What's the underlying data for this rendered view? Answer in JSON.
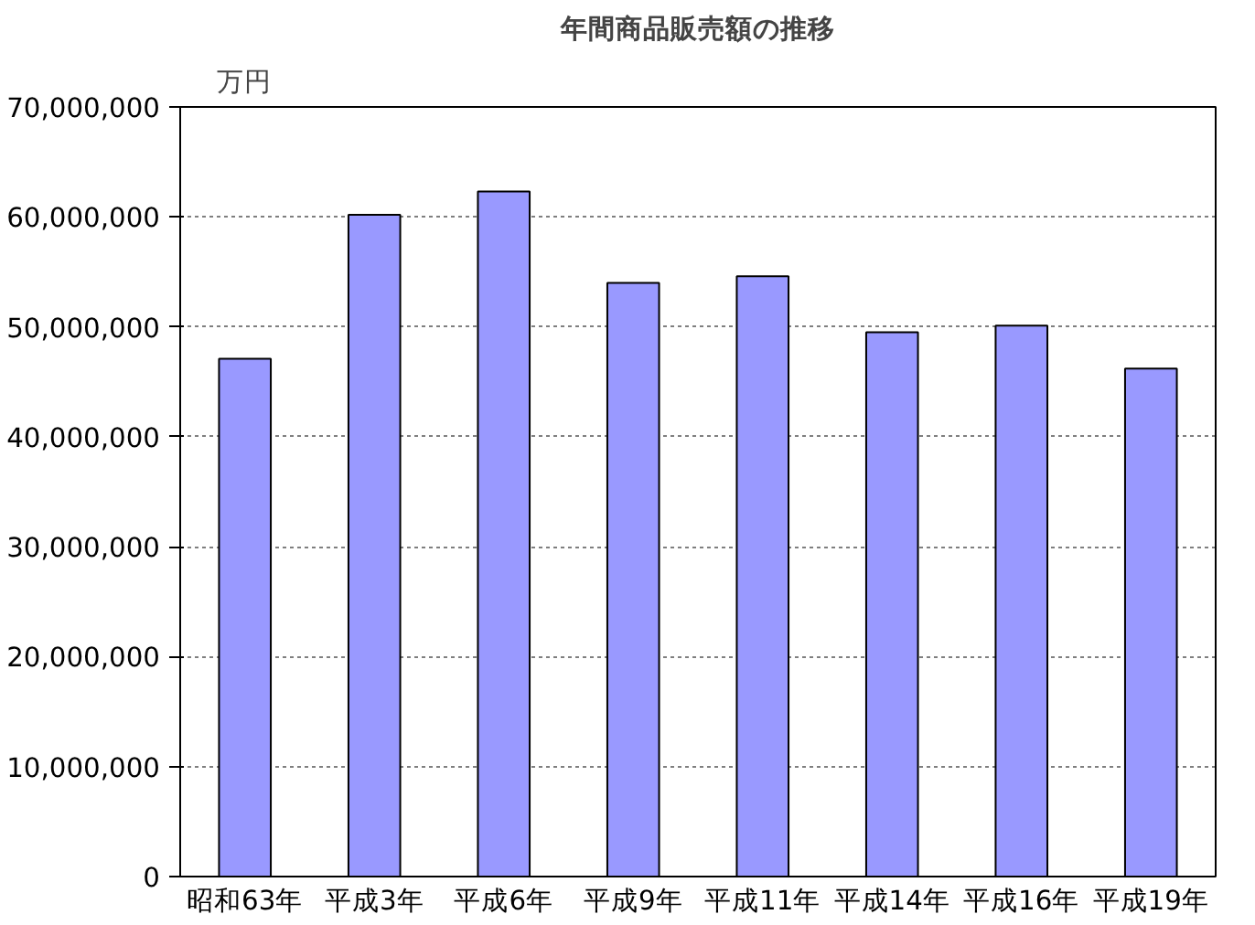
{
  "chart_data": {
    "type": "bar",
    "title": "年間商品販売額の推移",
    "ylabel": "万円",
    "categories": [
      "昭和63年",
      "平成3年",
      "平成6年",
      "平成9年",
      "平成11年",
      "平成14年",
      "平成16年",
      "平成19年"
    ],
    "values": [
      47100000,
      60200000,
      62300000,
      54000000,
      54600000,
      49500000,
      50100000,
      46200000
    ],
    "color": "#9999ff",
    "ylim": [
      0,
      70000000
    ],
    "yticks": [
      {
        "value": 0,
        "label": "0"
      },
      {
        "value": 10000000,
        "label": "10,000,000"
      },
      {
        "value": 20000000,
        "label": "20,000,000"
      },
      {
        "value": 30000000,
        "label": "30,000,000"
      },
      {
        "value": 40000000,
        "label": "40,000,000"
      },
      {
        "value": 50000000,
        "label": "50,000,000"
      },
      {
        "value": 60000000,
        "label": "60,000,000"
      },
      {
        "value": 70000000,
        "label": "70,000,000"
      }
    ],
    "grid": "y"
  }
}
